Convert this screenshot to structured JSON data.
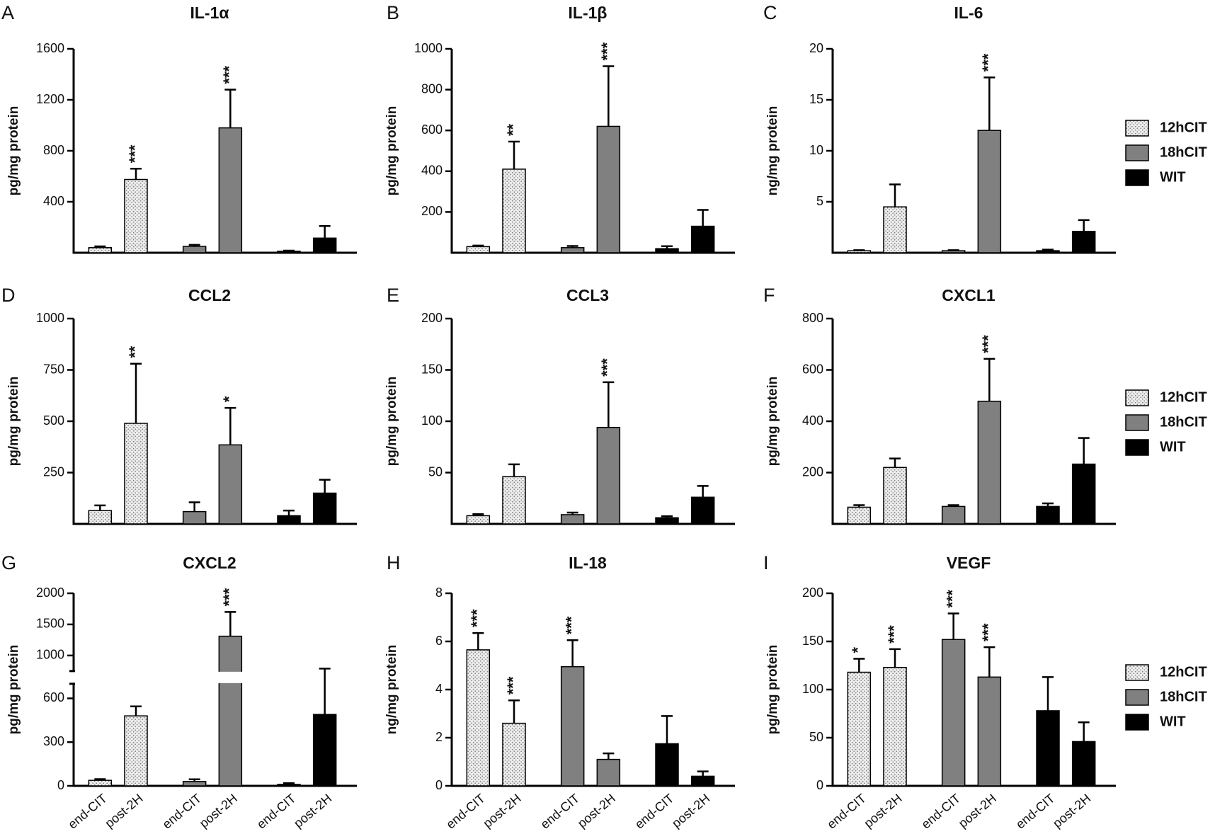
{
  "chart_data": [
    {
      "type": "bar",
      "panel": "A",
      "title": "IL-1α",
      "ylabel": "pg/mg protein",
      "ylim": [
        0,
        1600
      ],
      "yticks": [
        400,
        800,
        1200,
        1600
      ],
      "series": [
        {
          "color": "#ececec",
          "pattern": "dots",
          "values": [
            40,
            575
          ],
          "errors": [
            10,
            85
          ],
          "annotations": [
            null,
            "***"
          ]
        },
        {
          "color": "#808080",
          "values": [
            50,
            980
          ],
          "errors": [
            12,
            300
          ],
          "annotations": [
            null,
            "***"
          ]
        },
        {
          "color": "#000000",
          "values": [
            12,
            115
          ],
          "errors": [
            5,
            95
          ],
          "annotations": [
            null,
            null
          ]
        }
      ]
    },
    {
      "type": "bar",
      "panel": "B",
      "title": "IL-1β",
      "ylabel": "pg/mg protein",
      "ylim": [
        0,
        1000
      ],
      "yticks": [
        200,
        400,
        600,
        800,
        1000
      ],
      "series": [
        {
          "color": "#ececec",
          "pattern": "dots",
          "values": [
            30,
            410
          ],
          "errors": [
            5,
            135
          ],
          "annotations": [
            null,
            "**"
          ]
        },
        {
          "color": "#808080",
          "values": [
            25,
            620
          ],
          "errors": [
            8,
            295
          ],
          "annotations": [
            null,
            "***"
          ]
        },
        {
          "color": "#000000",
          "values": [
            20,
            130
          ],
          "errors": [
            12,
            80
          ],
          "annotations": [
            null,
            null
          ]
        }
      ]
    },
    {
      "type": "bar",
      "panel": "C",
      "title": "IL-6",
      "ylabel": "ng/mg protein",
      "ylim": [
        0,
        20
      ],
      "yticks": [
        5,
        10,
        15,
        20
      ],
      "legend": "right",
      "series": [
        {
          "name": "12hCIT",
          "color": "#ececec",
          "pattern": "dots",
          "values": [
            0.2,
            4.5
          ],
          "errors": [
            0.05,
            2.2
          ],
          "annotations": [
            null,
            null
          ]
        },
        {
          "name": "18hCIT",
          "color": "#808080",
          "values": [
            0.2,
            12
          ],
          "errors": [
            0.05,
            5.2
          ],
          "annotations": [
            null,
            "***"
          ]
        },
        {
          "name": "WIT",
          "color": "#000000",
          "values": [
            0.2,
            2.1
          ],
          "errors": [
            0.1,
            1.1
          ],
          "annotations": [
            null,
            null
          ]
        }
      ]
    },
    {
      "type": "bar",
      "panel": "D",
      "title": "CCL2",
      "ylabel": "pg/mg protein",
      "ylim": [
        0,
        1000
      ],
      "yticks": [
        250,
        500,
        750,
        1000
      ],
      "series": [
        {
          "color": "#ececec",
          "pattern": "dots",
          "values": [
            65,
            490
          ],
          "errors": [
            25,
            290
          ],
          "annotations": [
            null,
            "**"
          ]
        },
        {
          "color": "#808080",
          "values": [
            60,
            385
          ],
          "errors": [
            45,
            180
          ],
          "annotations": [
            null,
            "*"
          ]
        },
        {
          "color": "#000000",
          "values": [
            40,
            150
          ],
          "errors": [
            25,
            65
          ],
          "annotations": [
            null,
            null
          ]
        }
      ]
    },
    {
      "type": "bar",
      "panel": "E",
      "title": "CCL3",
      "ylabel": "pg/mg protein",
      "ylim": [
        0,
        200
      ],
      "yticks": [
        50,
        100,
        150,
        200
      ],
      "series": [
        {
          "color": "#ececec",
          "pattern": "dots",
          "values": [
            8,
            46
          ],
          "errors": [
            1.5,
            12
          ],
          "annotations": [
            null,
            null
          ]
        },
        {
          "color": "#808080",
          "values": [
            9,
            94
          ],
          "errors": [
            2,
            44
          ],
          "annotations": [
            null,
            "***"
          ]
        },
        {
          "color": "#000000",
          "values": [
            6,
            26
          ],
          "errors": [
            1.5,
            11
          ],
          "annotations": [
            null,
            null
          ]
        }
      ]
    },
    {
      "type": "bar",
      "panel": "F",
      "title": "CXCL1",
      "ylabel": "pg/mg protein",
      "ylim": [
        0,
        800
      ],
      "yticks": [
        200,
        400,
        600,
        800
      ],
      "legend": "right",
      "series": [
        {
          "name": "12hCIT",
          "color": "#ececec",
          "pattern": "dots",
          "values": [
            65,
            220
          ],
          "errors": [
            8,
            35
          ],
          "annotations": [
            null,
            null
          ]
        },
        {
          "name": "18hCIT",
          "color": "#808080",
          "values": [
            68,
            478
          ],
          "errors": [
            5,
            165
          ],
          "annotations": [
            null,
            "***"
          ]
        },
        {
          "name": "WIT",
          "color": "#000000",
          "values": [
            68,
            233
          ],
          "errors": [
            12,
            102
          ],
          "annotations": [
            null,
            null
          ]
        }
      ]
    },
    {
      "type": "bar",
      "panel": "G",
      "title": "CXCL2",
      "ylabel": "pg/mg protein",
      "ylim": [
        0,
        2000
      ],
      "ybreak": [
        700,
        750
      ],
      "yticks": [
        0,
        300,
        600,
        1000,
        1500,
        2000
      ],
      "categories": [
        "end-CIT",
        "post-2H"
      ],
      "series": [
        {
          "color": "#ececec",
          "pattern": "dots",
          "values": [
            38,
            480
          ],
          "errors": [
            8,
            65
          ],
          "annotations": [
            null,
            null
          ]
        },
        {
          "color": "#808080",
          "values": [
            30,
            1310
          ],
          "errors": [
            15,
            390
          ],
          "annotations": [
            null,
            "***"
          ]
        },
        {
          "color": "#000000",
          "values": [
            10,
            490
          ],
          "errors": [
            8,
            300
          ],
          "annotations": [
            null,
            null
          ]
        }
      ]
    },
    {
      "type": "bar",
      "panel": "H",
      "title": "IL-18",
      "ylabel": "ng/mg protein",
      "ylim": [
        0,
        8
      ],
      "yticks": [
        0,
        2,
        4,
        6,
        8
      ],
      "categories": [
        "end-CIT",
        "post-2H"
      ],
      "series": [
        {
          "color": "#ececec",
          "pattern": "dots",
          "values": [
            5.65,
            2.6
          ],
          "errors": [
            0.7,
            0.95
          ],
          "annotations": [
            "***",
            "***"
          ]
        },
        {
          "color": "#808080",
          "values": [
            4.95,
            1.1
          ],
          "errors": [
            1.1,
            0.25
          ],
          "annotations": [
            "***",
            null
          ]
        },
        {
          "color": "#000000",
          "values": [
            1.75,
            0.4
          ],
          "errors": [
            1.15,
            0.2
          ],
          "annotations": [
            null,
            null
          ]
        }
      ]
    },
    {
      "type": "bar",
      "panel": "I",
      "title": "VEGF",
      "ylabel": "pg/mg protein",
      "ylim": [
        0,
        200
      ],
      "yticks": [
        0,
        50,
        100,
        150,
        200
      ],
      "legend": "right",
      "categories": [
        "end-CIT",
        "post-2H"
      ],
      "series": [
        {
          "name": "12hCIT",
          "color": "#ececec",
          "pattern": "dots",
          "values": [
            118,
            123
          ],
          "errors": [
            14,
            19
          ],
          "annotations": [
            "*",
            "***"
          ]
        },
        {
          "name": "18hCIT",
          "color": "#808080",
          "values": [
            152,
            113
          ],
          "errors": [
            27,
            31
          ],
          "annotations": [
            "***",
            "***"
          ]
        },
        {
          "name": "WIT",
          "color": "#000000",
          "values": [
            78,
            46
          ],
          "errors": [
            35,
            20
          ],
          "annotations": [
            null,
            null
          ]
        }
      ]
    }
  ]
}
